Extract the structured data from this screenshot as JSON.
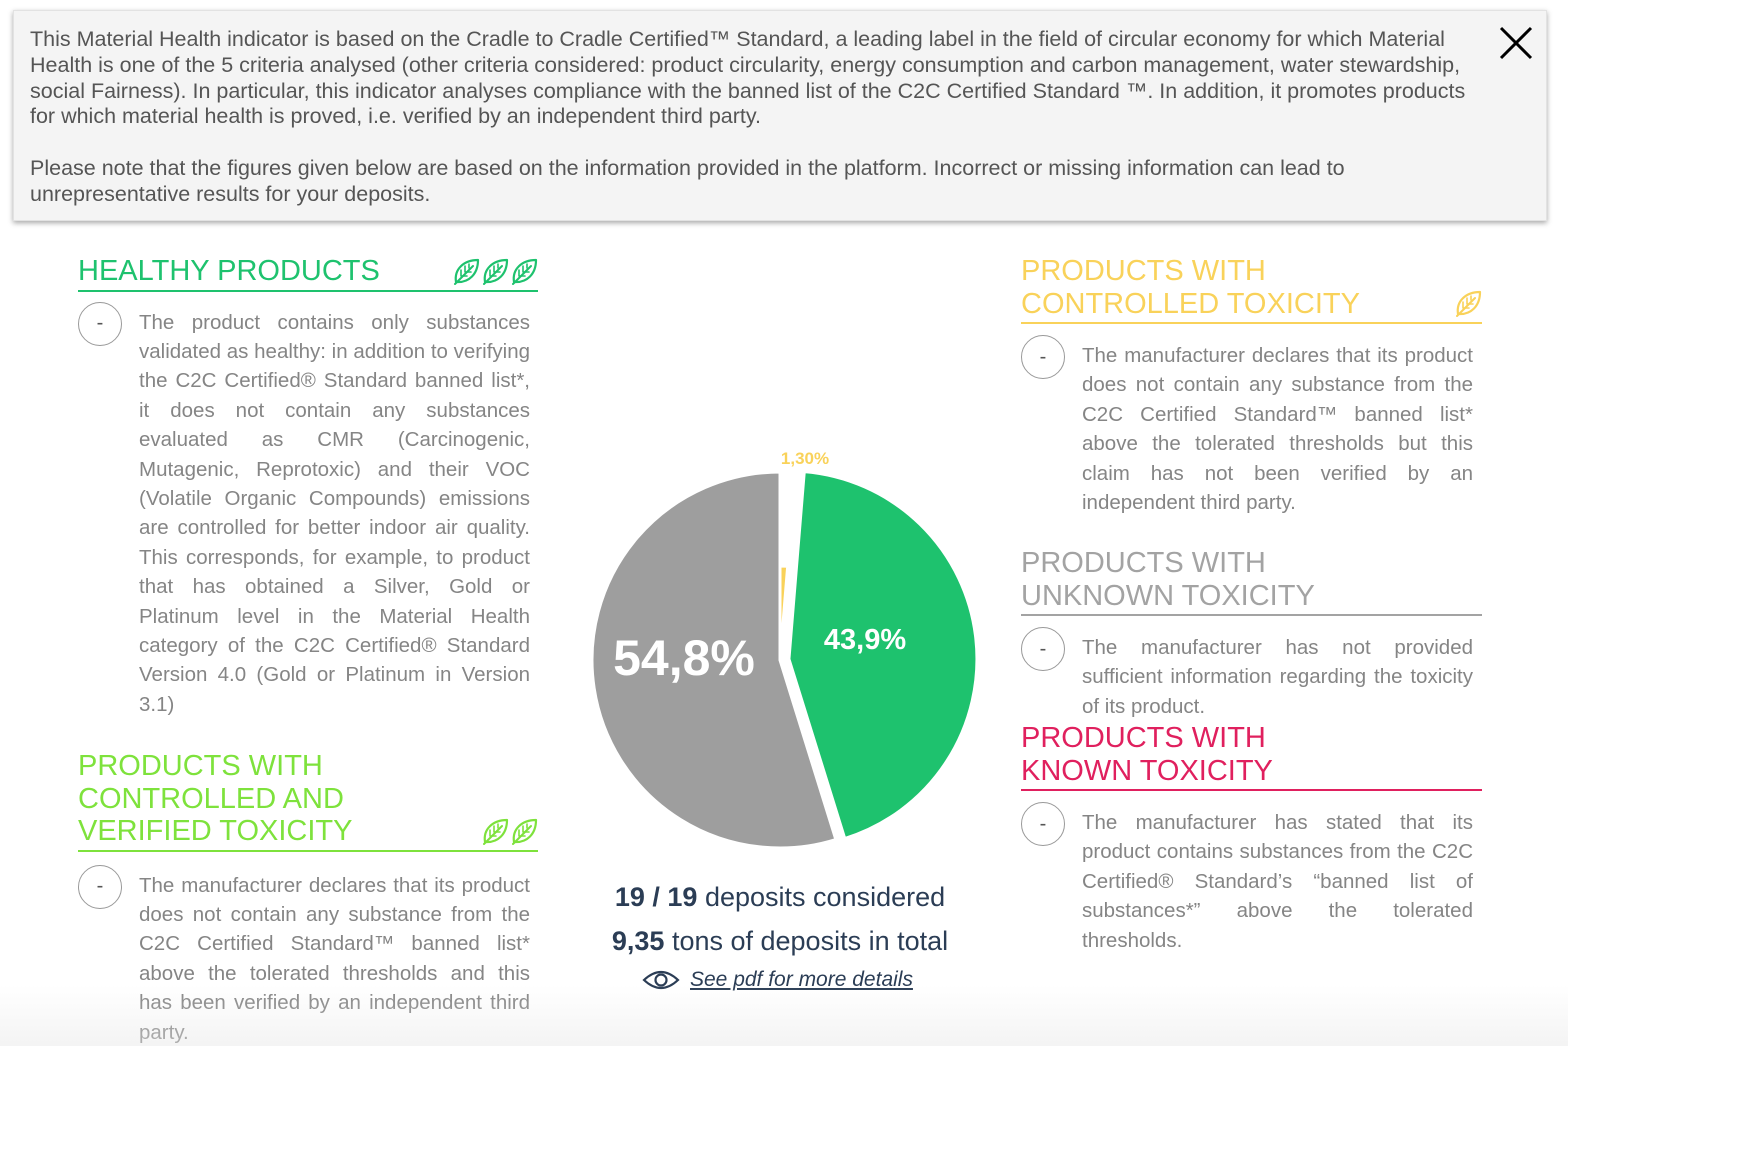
{
  "info": {
    "paragraph1": "This Material Health indicator is based on the Cradle to Cradle Certified™ Standard, a leading label in the field of circular economy for which Material Health is one of the 5 criteria analysed (other criteria considered: product circularity, energy consumption and carbon management, water stewardship, social Fairness). In particular, this indicator analyses compliance with the banned list of the C2C Certified Standard ™. In addition, it promotes products for which material health is proved, i.e. verified by an independent third party.",
    "paragraph2": "Please note that the figures given below are based on the information provided in the platform. Incorrect or missing information can lead to unrepresentative results for your deposits."
  },
  "categories": {
    "healthy": {
      "title": "HEALTHY PRODUCTS",
      "leaves": 3,
      "color": "#1ec26e",
      "button": "-",
      "description": "The product contains only substances validated as healthy: in addition to verifying the C2C Certified® Standard banned list*, it does not contain any substances evaluated as CMR (Carcinogenic, Mutagenic, Reprotoxic) and their VOC (Volatile Organic Compounds) emissions are controlled for better indoor air quality. This corresponds, for example, to product that has obtained a Silver, Gold or Platinum level in the Material Health category of the C2C Certified® Standard Version 4.0 (Gold or Platinum in Version 3.1)"
    },
    "controlled_verified": {
      "title": "PRODUCTS WITH\nCONTROLLED AND\nVERIFIED TOXICITY",
      "leaves": 2,
      "color": "#7ee23c",
      "button": "-",
      "description": "The manufacturer declares that its product does not contain any substance from the C2C Certified Standard™ banned list* above the tolerated thresholds and this has been verified by an independent third party."
    },
    "controlled": {
      "title": "PRODUCTS WITH\nCONTROLLED TOXICITY",
      "leaves": 1,
      "color": "#f9d25a",
      "button": "-",
      "description": "The manufacturer declares that its product does not contain any substance from the C2C Certified Standard™ banned list* above the tolerated thresholds but this claim has not been verified by an independent third party."
    },
    "unknown": {
      "title": "PRODUCTS WITH\nUNKNOWN TOXICITY",
      "leaves": 0,
      "color": "#a3a3a3",
      "button": "-",
      "description": "The manufacturer has not provided sufficient information regarding the toxicity of its product."
    },
    "known": {
      "title": "PRODUCTS WITH\nKNOWN TOXICITY",
      "leaves": 0,
      "color": "#e0205e",
      "button": "-",
      "description": "The manufacturer has stated that its product contains substances from the C2C Certified® Standard’s “banned list of substances*” above the tolerated thresholds."
    }
  },
  "chart_data": {
    "type": "pie",
    "slices": [
      {
        "category": "controlled",
        "value": 1.3,
        "label": "1,30%",
        "color": "#f9d25a"
      },
      {
        "category": "healthy",
        "value": 43.9,
        "label": "43,9%",
        "color": "#1ec26e"
      },
      {
        "category": "unknown",
        "value": 54.8,
        "label": "54,8%",
        "color": "#9e9e9e"
      }
    ]
  },
  "stats": {
    "deposits_count": "19 / 19",
    "deposits_label": "deposits considered",
    "tons_count": "9,35",
    "tons_label": "tons of deposits in total"
  },
  "link": {
    "label": "See pdf for more details"
  },
  "icons": {
    "close": "close-icon",
    "leaf": "leaf-icon",
    "eye": "eye-icon"
  }
}
